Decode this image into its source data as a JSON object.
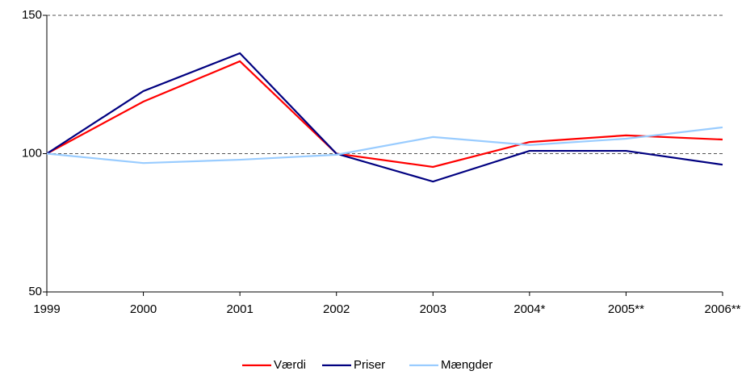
{
  "chart_data": {
    "type": "line",
    "categories": [
      "1999",
      "2000",
      "2001",
      "2002",
      "2003",
      "2004*",
      "2005**",
      "2006**"
    ],
    "series": [
      {
        "name": "Værdi",
        "color": "#ff0000",
        "values": [
          100,
          118.8,
          133.4,
          100,
          95.2,
          104.2,
          106.6,
          105.1
        ]
      },
      {
        "name": "Priser",
        "color": "#000080",
        "values": [
          100,
          122.6,
          136.3,
          100,
          89.9,
          101,
          101,
          96
        ]
      },
      {
        "name": "Mængder",
        "color": "#99ccff",
        "values": [
          100,
          96.6,
          97.8,
          99.6,
          106,
          103.1,
          105.4,
          109.5
        ]
      }
    ],
    "ylim": [
      50,
      150
    ],
    "yticks": [
      50,
      100,
      150
    ],
    "grid": true,
    "legend": "bottom"
  }
}
